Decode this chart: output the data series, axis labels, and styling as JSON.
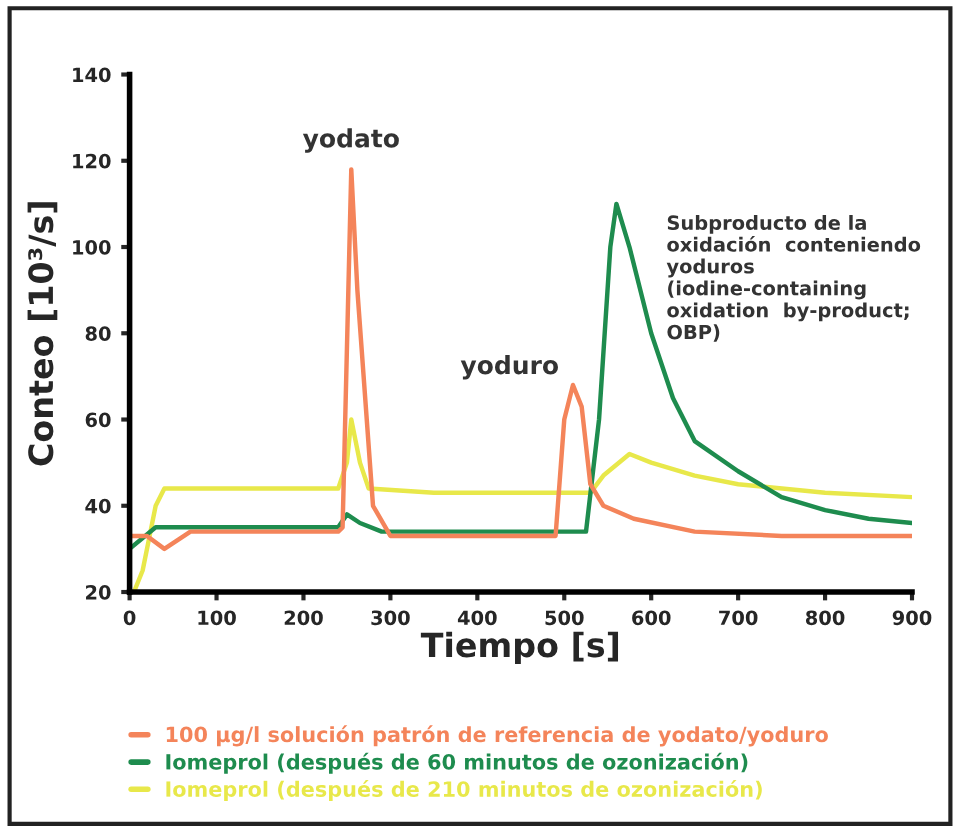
{
  "chart_data": {
    "type": "line",
    "xlabel": "Tiempo [s]",
    "ylabel": "Conteo [10³/s]",
    "xlim": [
      0,
      900
    ],
    "ylim": [
      20,
      140
    ],
    "xticks": [
      0,
      100,
      200,
      300,
      400,
      500,
      600,
      700,
      800,
      900
    ],
    "yticks": [
      20,
      40,
      60,
      80,
      100,
      120,
      140
    ],
    "grid": false,
    "legend": "bottom",
    "marker": "none",
    "line_style": "solid",
    "series": [
      {
        "name": "Iomeprol (después de 210 minutos de ozonización)",
        "color": "#e8e84a",
        "x": [
          5,
          15,
          30,
          40,
          100,
          200,
          240,
          250,
          255,
          265,
          275,
          350,
          450,
          530,
          545,
          575,
          600,
          650,
          700,
          800,
          900
        ],
        "values": [
          20,
          25,
          40,
          44,
          44,
          44,
          44,
          50,
          60,
          50,
          44,
          43,
          43,
          43,
          47,
          52,
          50,
          47,
          45,
          43,
          42
        ]
      },
      {
        "name": "Iomeprol (después de 60 minutos de ozonización)",
        "color": "#1e8c4e",
        "x": [
          0,
          30,
          100,
          200,
          240,
          250,
          265,
          290,
          400,
          525,
          540,
          553,
          560,
          575,
          600,
          625,
          650,
          700,
          750,
          800,
          850,
          900
        ],
        "values": [
          30,
          35,
          35,
          35,
          35,
          38,
          36,
          34,
          34,
          34,
          60,
          100,
          110,
          100,
          80,
          65,
          55,
          48,
          42,
          39,
          37,
          36
        ]
      },
      {
        "name": "100 µg/l solución patrón de referencia de yodato/yoduro",
        "color": "#f4845a",
        "x": [
          0,
          20,
          40,
          70,
          150,
          240,
          245,
          255,
          262,
          280,
          300,
          400,
          490,
          500,
          510,
          520,
          530,
          545,
          580,
          650,
          750,
          900
        ],
        "values": [
          33,
          33,
          30,
          34,
          34,
          34,
          35,
          118,
          90,
          40,
          33,
          33,
          33,
          60,
          68,
          63,
          45,
          40,
          37,
          34,
          33,
          33
        ]
      }
    ],
    "annotations": [
      {
        "text": "yodato",
        "x": 255,
        "y": 118
      },
      {
        "text": "yoduro",
        "x": 510,
        "y": 68
      },
      {
        "text": "Subproducto de la oxidación  conteniendo yoduros (iodine-containing oxidation  by-product; OBP)",
        "x": 560,
        "y": 110
      }
    ]
  }
}
